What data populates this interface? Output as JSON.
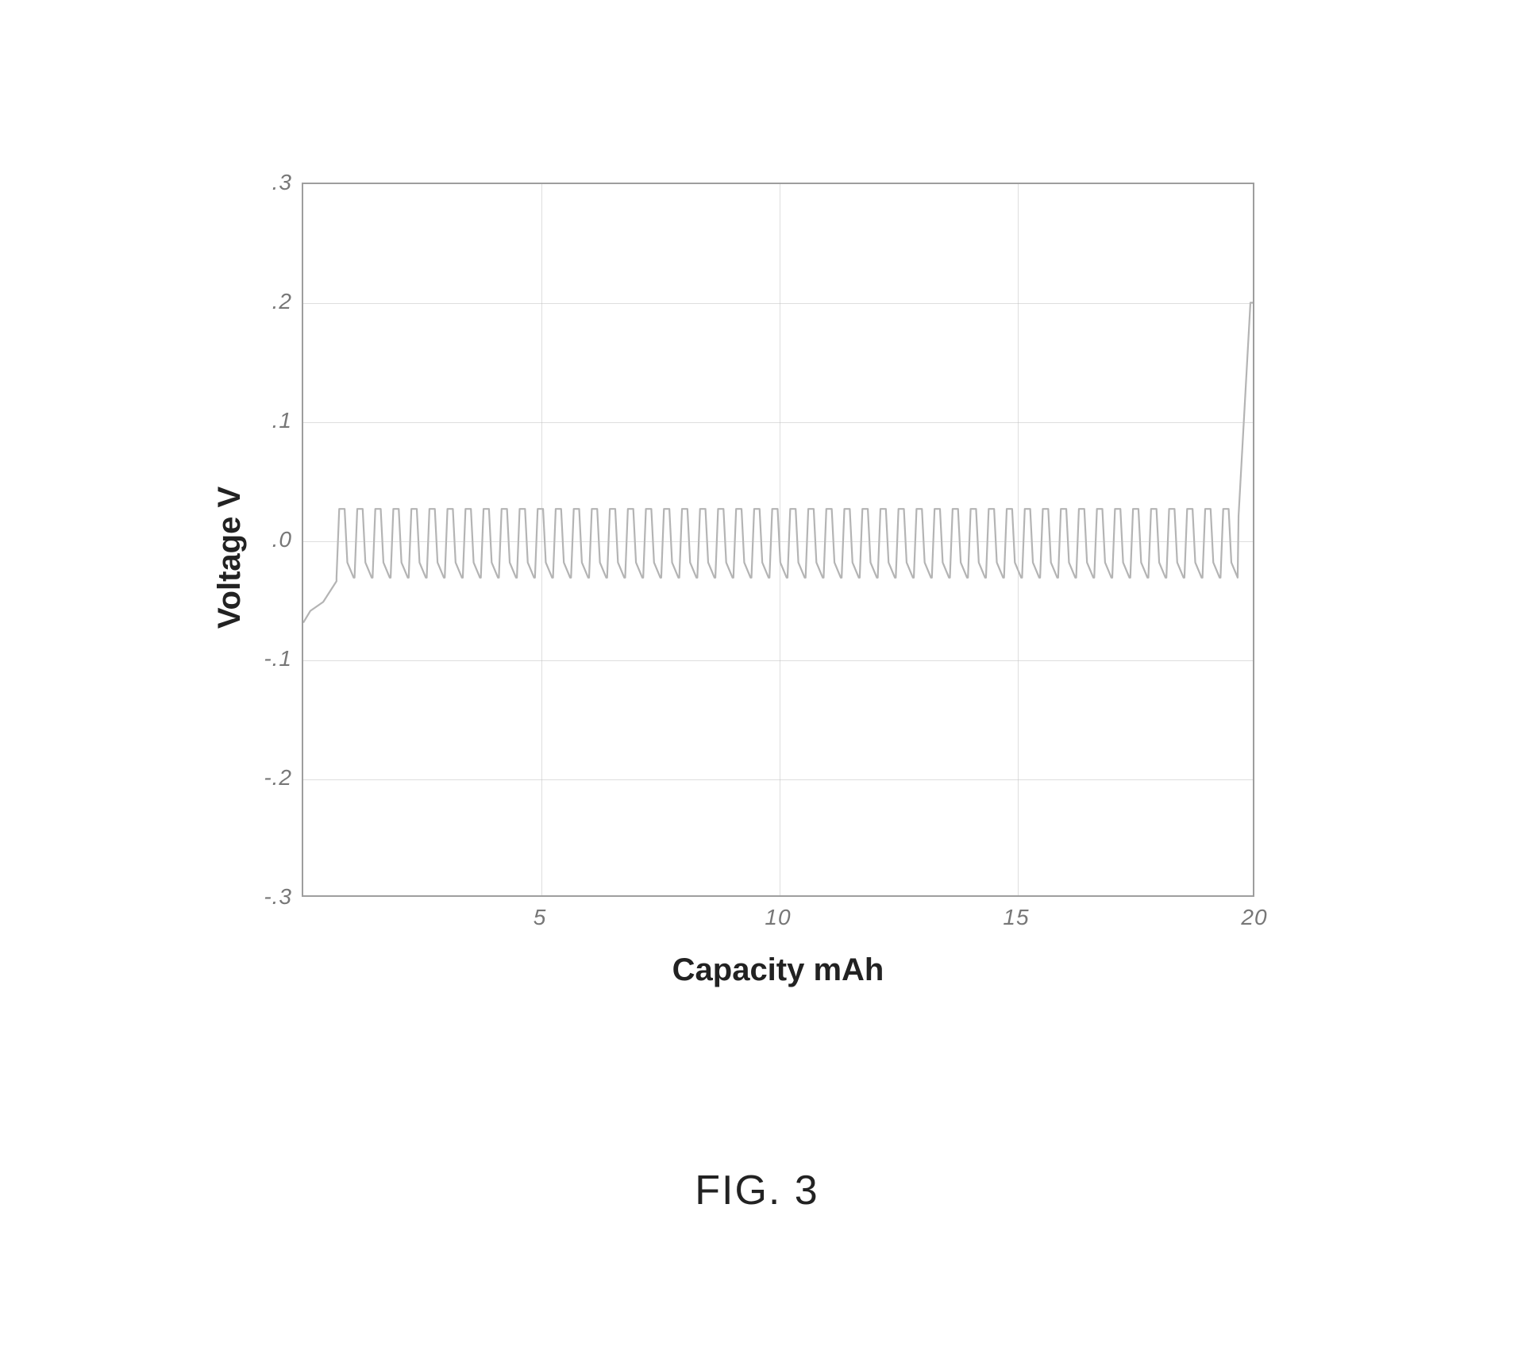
{
  "chart": {
    "type": "line",
    "xlabel": "Capacity mAh",
    "ylabel": "Voltage V",
    "label_fontsize": 40,
    "tick_fontsize": 28,
    "xlim": [
      0,
      20
    ],
    "ylim": [
      -0.3,
      0.3
    ],
    "x_ticks": [
      {
        "pos": 5,
        "label": "5"
      },
      {
        "pos": 10,
        "label": "10"
      },
      {
        "pos": 15,
        "label": "15"
      },
      {
        "pos": 20,
        "label": "20"
      }
    ],
    "y_ticks": [
      {
        "pos": 0.3,
        "label": ".3"
      },
      {
        "pos": 0.2,
        "label": ".2"
      },
      {
        "pos": 0.1,
        "label": ".1"
      },
      {
        "pos": 0.0,
        "label": ".0"
      },
      {
        "pos": -0.1,
        "label": "-.1"
      },
      {
        "pos": -0.2,
        "label": "-.2"
      },
      {
        "pos": -0.3,
        "label": "-.3"
      }
    ],
    "gridlines_h": [
      0.3,
      0.2,
      0.1,
      0.0,
      -0.1,
      -0.2,
      -0.3
    ],
    "gridlines_v": [
      0,
      5,
      10,
      15,
      20
    ],
    "background_color": "#ffffff",
    "border_color": "#9e9e9e",
    "grid_color": "#bdbdbd",
    "series": {
      "color": "#b0b0b0",
      "line_width": 2.2,
      "opacity": 0.95,
      "lead_in": {
        "x_start": 0.0,
        "y_start": -0.07,
        "x_end": 0.7,
        "y_end": -0.035
      },
      "oscillation": {
        "x_start": 0.7,
        "x_end": 19.7,
        "cycles": 50,
        "y_high": 0.026,
        "y_low": -0.032,
        "shape": "sawtooth-with-plateau"
      },
      "lead_out": {
        "x_start": 19.7,
        "y_start": 0.02,
        "x_rise": 19.95,
        "y_end": 0.2,
        "x_end": 20.0
      }
    }
  },
  "caption": "FIG. 3",
  "caption_fontsize": 52
}
